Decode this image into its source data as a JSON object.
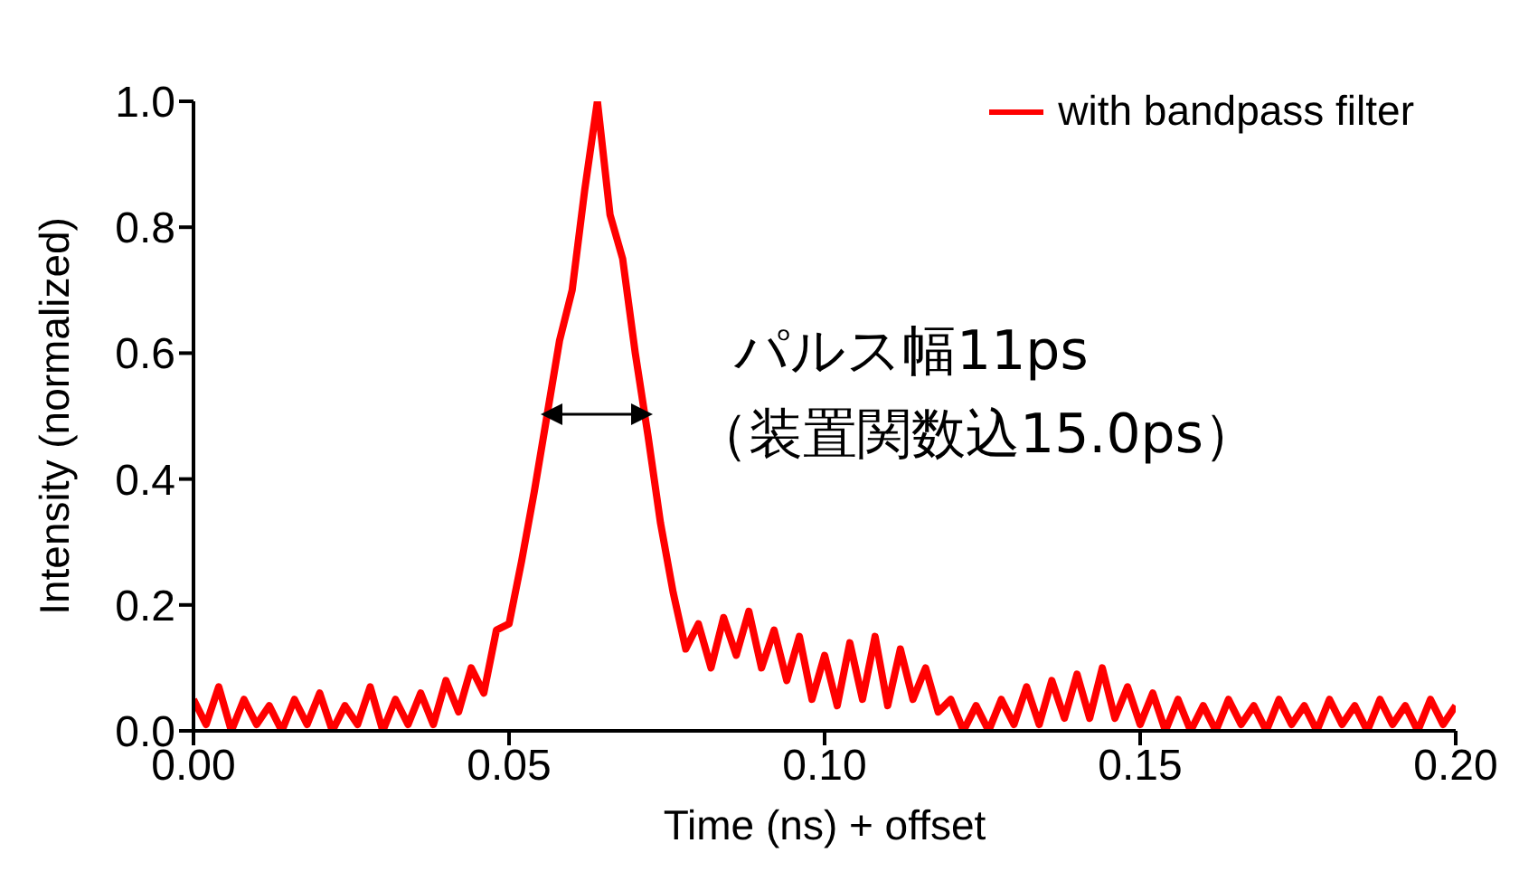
{
  "chart_data": {
    "type": "line",
    "xlabel": "Time (ns) + offset",
    "ylabel": "Intensity (normalized)",
    "x": [
      0,
      0.002,
      0.004,
      0.006,
      0.008,
      0.01,
      0.012,
      0.014,
      0.016,
      0.018,
      0.02,
      0.022,
      0.024,
      0.026,
      0.028,
      0.03,
      0.032,
      0.034,
      0.036,
      0.038,
      0.04,
      0.042,
      0.044,
      0.046,
      0.048,
      0.05,
      0.052,
      0.054,
      0.056,
      0.058,
      0.06,
      0.062,
      0.064,
      0.066,
      0.068,
      0.07,
      0.072,
      0.074,
      0.076,
      0.078,
      0.08,
      0.082,
      0.084,
      0.086,
      0.088,
      0.09,
      0.092,
      0.094,
      0.096,
      0.098,
      0.1,
      0.102,
      0.104,
      0.106,
      0.108,
      0.11,
      0.112,
      0.114,
      0.116,
      0.118,
      0.12,
      0.122,
      0.124,
      0.126,
      0.128,
      0.13,
      0.132,
      0.134,
      0.136,
      0.138,
      0.14,
      0.142,
      0.144,
      0.146,
      0.148,
      0.15,
      0.152,
      0.154,
      0.156,
      0.158,
      0.16,
      0.162,
      0.164,
      0.166,
      0.168,
      0.17,
      0.172,
      0.174,
      0.176,
      0.178,
      0.18,
      0.182,
      0.184,
      0.186,
      0.188,
      0.19,
      0.192,
      0.194,
      0.196,
      0.198,
      0.2
    ],
    "series": [
      {
        "name": "with bandpass filter",
        "color": "#ff0000",
        "values": [
          0.05,
          0.01,
          0.07,
          0.0,
          0.05,
          0.01,
          0.04,
          0.0,
          0.05,
          0.01,
          0.06,
          0.0,
          0.04,
          0.01,
          0.07,
          0.0,
          0.05,
          0.01,
          0.06,
          0.01,
          0.08,
          0.03,
          0.1,
          0.06,
          0.16,
          0.17,
          0.27,
          0.38,
          0.5,
          0.62,
          0.7,
          0.86,
          1.0,
          0.82,
          0.75,
          0.6,
          0.47,
          0.33,
          0.22,
          0.13,
          0.17,
          0.1,
          0.18,
          0.12,
          0.19,
          0.1,
          0.16,
          0.08,
          0.15,
          0.05,
          0.12,
          0.04,
          0.14,
          0.05,
          0.15,
          0.04,
          0.13,
          0.05,
          0.1,
          0.03,
          0.05,
          0.0,
          0.04,
          0.0,
          0.05,
          0.01,
          0.07,
          0.01,
          0.08,
          0.02,
          0.09,
          0.02,
          0.1,
          0.02,
          0.07,
          0.01,
          0.06,
          0.0,
          0.05,
          0.0,
          0.04,
          0.0,
          0.05,
          0.01,
          0.04,
          0.0,
          0.05,
          0.01,
          0.04,
          0.0,
          0.05,
          0.01,
          0.04,
          0.0,
          0.05,
          0.01,
          0.04,
          0.0,
          0.05,
          0.01,
          0.04
        ]
      }
    ],
    "xlim": [
      0,
      0.2
    ],
    "xticks": [
      {
        "value": 0,
        "label": "0.00"
      },
      {
        "value": 0.05,
        "label": "0.05"
      },
      {
        "value": 0.1,
        "label": "0.10"
      },
      {
        "value": 0.15,
        "label": "0.15"
      },
      {
        "value": 0.2,
        "label": "0.20"
      }
    ],
    "ylim": [
      0,
      1
    ],
    "yticks": [
      {
        "value": 0,
        "label": "0.0"
      },
      0.2,
      0.4,
      0.6,
      0.8,
      {
        "value": 1,
        "label": "1.0"
      }
    ],
    "annotations": [
      "パルス幅11ps",
      "（装置関数込15.0ps）"
    ],
    "legend": "top right",
    "grid": false,
    "marker": "none",
    "line_style": "solid"
  }
}
